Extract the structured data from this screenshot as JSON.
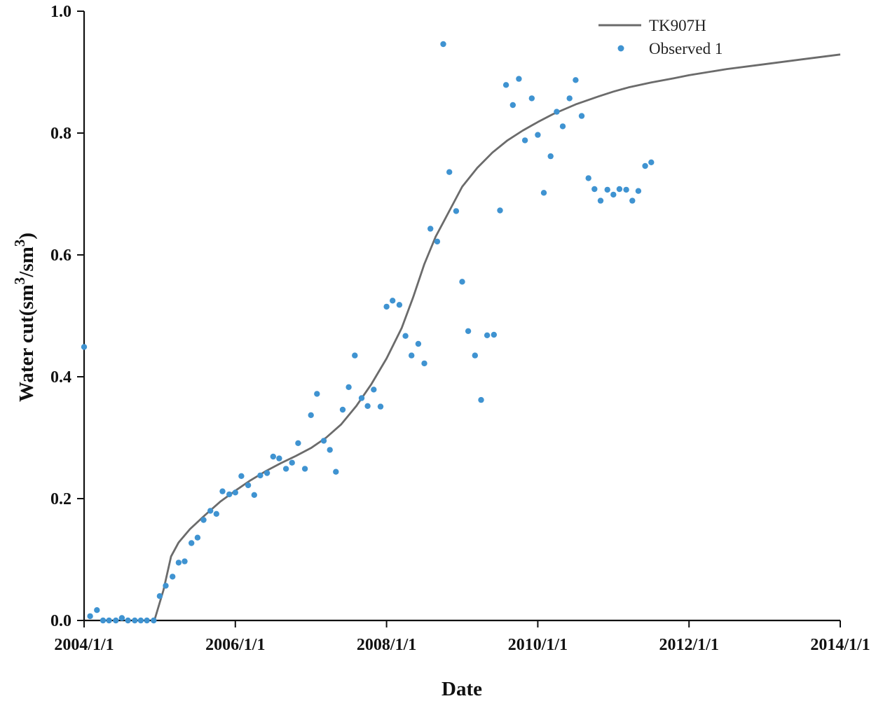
{
  "chart_data": {
    "type": "line",
    "xlabel": "Date",
    "ylabel_main": "Water cut(sm",
    "ylabel_sup": "3",
    "ylabel_mid": "/sm",
    "ylabel_end": ")",
    "xlim": [
      2004.0,
      2014.0
    ],
    "ylim": [
      0.0,
      1.0
    ],
    "x_ticks": [
      {
        "value": 2004,
        "label": "2004/1/1"
      },
      {
        "value": 2006,
        "label": "2006/1/1"
      },
      {
        "value": 2008,
        "label": "2008/1/1"
      },
      {
        "value": 2010,
        "label": "2010/1/1"
      },
      {
        "value": 2012,
        "label": "2012/1/1"
      },
      {
        "value": 2014,
        "label": "2014/1/1"
      }
    ],
    "y_ticks": [
      {
        "value": 0.0,
        "label": "0.0"
      },
      {
        "value": 0.2,
        "label": "0.2"
      },
      {
        "value": 0.4,
        "label": "0.4"
      },
      {
        "value": 0.6,
        "label": "0.6"
      },
      {
        "value": 0.8,
        "label": "0.8"
      },
      {
        "value": 1.0,
        "label": "1.0"
      }
    ],
    "grid": false,
    "legend_position": "top-right",
    "series": [
      {
        "name": "TK907H",
        "kind": "line",
        "color": "#6b6b6b",
        "x": [
          2004.93,
          2005.05,
          2005.15,
          2005.25,
          2005.4,
          2005.6,
          2005.8,
          2006.0,
          2006.2,
          2006.4,
          2006.6,
          2006.8,
          2007.0,
          2007.2,
          2007.4,
          2007.6,
          2007.8,
          2008.0,
          2008.2,
          2008.35,
          2008.5,
          2008.65,
          2008.8,
          2009.0,
          2009.2,
          2009.4,
          2009.6,
          2009.8,
          2010.0,
          2010.2,
          2010.5,
          2010.8,
          2011.0,
          2011.2,
          2011.5,
          2011.8,
          2012.0,
          2012.5,
          2013.0,
          2013.5,
          2014.0
        ],
        "y": [
          0.0,
          0.05,
          0.105,
          0.128,
          0.15,
          0.173,
          0.195,
          0.213,
          0.23,
          0.245,
          0.258,
          0.27,
          0.283,
          0.3,
          0.322,
          0.352,
          0.388,
          0.43,
          0.48,
          0.53,
          0.585,
          0.63,
          0.665,
          0.712,
          0.743,
          0.768,
          0.788,
          0.804,
          0.818,
          0.831,
          0.847,
          0.86,
          0.868,
          0.875,
          0.883,
          0.89,
          0.895,
          0.905,
          0.913,
          0.921,
          0.929
        ]
      },
      {
        "name": "Observed 1",
        "kind": "scatter",
        "color": "#3f93d1",
        "x": [
          2004.0,
          2004.08,
          2004.17,
          2004.25,
          2004.33,
          2004.42,
          2004.5,
          2004.58,
          2004.67,
          2004.75,
          2004.83,
          2004.92,
          2005.0,
          2005.08,
          2005.17,
          2005.25,
          2005.33,
          2005.42,
          2005.5,
          2005.58,
          2005.67,
          2005.75,
          2005.83,
          2005.92,
          2006.0,
          2006.08,
          2006.17,
          2006.25,
          2006.33,
          2006.42,
          2006.5,
          2006.58,
          2006.67,
          2006.75,
          2006.83,
          2006.92,
          2007.0,
          2007.08,
          2007.17,
          2007.25,
          2007.33,
          2007.42,
          2007.5,
          2007.58,
          2007.67,
          2007.75,
          2007.83,
          2007.92,
          2008.0,
          2008.08,
          2008.17,
          2008.25,
          2008.33,
          2008.42,
          2008.5,
          2008.58,
          2008.67,
          2008.75,
          2008.83,
          2008.92,
          2009.0,
          2009.08,
          2009.17,
          2009.25,
          2009.33,
          2009.42,
          2009.5,
          2009.58,
          2009.67,
          2009.75,
          2009.83,
          2009.92,
          2010.0,
          2010.08,
          2010.17,
          2010.25,
          2010.33,
          2010.42,
          2010.5,
          2010.58,
          2010.67,
          2010.75,
          2010.83,
          2010.92,
          2011.0,
          2011.08,
          2011.17,
          2011.25,
          2011.33,
          2011.42,
          2011.5
        ],
        "y": [
          0.449,
          0.007,
          0.017,
          0.0,
          0.0,
          0.0,
          0.004,
          0.0,
          0.0,
          0.0,
          0.0,
          0.0,
          0.04,
          0.057,
          0.072,
          0.095,
          0.097,
          0.127,
          0.136,
          0.165,
          0.18,
          0.175,
          0.212,
          0.207,
          0.21,
          0.237,
          0.222,
          0.206,
          0.238,
          0.242,
          0.269,
          0.266,
          0.249,
          0.259,
          0.291,
          0.249,
          0.337,
          0.372,
          0.295,
          0.28,
          0.244,
          0.346,
          0.383,
          0.435,
          0.365,
          0.352,
          0.379,
          0.351,
          0.515,
          0.525,
          0.518,
          0.467,
          0.435,
          0.454,
          0.422,
          0.643,
          0.622,
          0.946,
          0.736,
          0.672,
          0.556,
          0.475,
          0.435,
          0.362,
          0.468,
          0.469,
          0.673,
          0.879,
          0.846,
          0.889,
          0.788,
          0.857,
          0.797,
          0.702,
          0.762,
          0.835,
          0.811,
          0.857,
          0.887,
          0.828,
          0.726,
          0.708,
          0.689,
          0.707,
          0.699,
          0.708,
          0.707,
          0.689,
          0.705,
          0.746,
          0.752
        ]
      }
    ]
  }
}
